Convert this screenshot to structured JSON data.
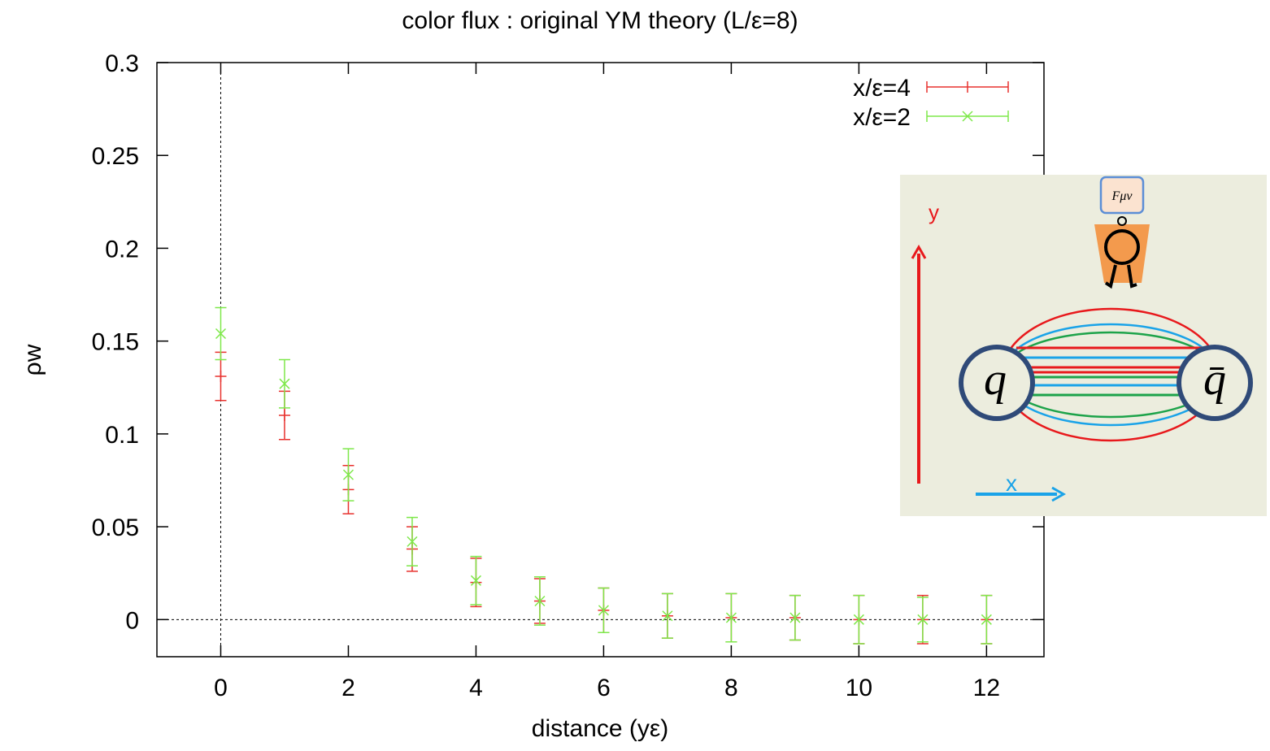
{
  "chart_data": {
    "type": "errorbar",
    "title": "color flux : original YM theory  (L/ε=8)",
    "x_label": "distance (yε)",
    "y_label": "ρw",
    "xlim": [
      -1,
      12.9
    ],
    "xticks": [
      0,
      2,
      4,
      6,
      8,
      10,
      12
    ],
    "ylim": [
      -0.02,
      0.3
    ],
    "yticks": [
      0,
      0.05,
      0.1,
      0.15,
      0.2,
      0.25,
      0.3
    ],
    "zeroaxis": true,
    "legend": "top-right",
    "x": [
      0,
      1,
      2,
      3,
      4,
      5,
      6,
      7,
      8,
      9,
      10,
      11,
      12
    ],
    "series": [
      {
        "name": "x/ε=4",
        "color": "#e8322e",
        "marker": "+",
        "values": [
          0.131,
          0.11,
          0.07,
          0.038,
          0.02,
          0.01,
          0.005,
          0.002,
          0.001,
          0.001,
          0.0,
          0.0,
          0.0
        ],
        "errors": [
          0.013,
          0.013,
          0.013,
          0.012,
          0.013,
          0.012,
          0.012,
          0.012,
          0.013,
          0.012,
          0.013,
          0.013,
          0.013
        ]
      },
      {
        "name": "x/ε=2",
        "color": "#7ee84a",
        "marker": "x",
        "values": [
          0.154,
          0.127,
          0.078,
          0.042,
          0.021,
          0.01,
          0.005,
          0.002,
          0.001,
          0.001,
          0.0,
          0.0,
          0.0
        ],
        "errors": [
          0.014,
          0.013,
          0.014,
          0.013,
          0.013,
          0.013,
          0.012,
          0.012,
          0.013,
          0.012,
          0.013,
          0.012,
          0.013
        ]
      }
    ]
  },
  "inset_labels": {
    "y_axis": "y",
    "x_axis": "x",
    "quark": "q",
    "antiquark": "q̄",
    "field": "Fμν"
  }
}
